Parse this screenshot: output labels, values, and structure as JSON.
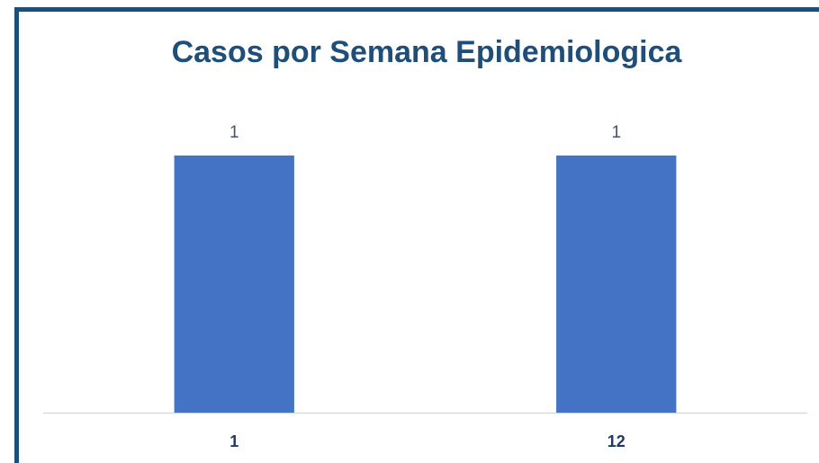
{
  "chart_data": {
    "type": "bar",
    "title": "Casos por Semana Epidemiologica",
    "categories": [
      "1",
      "12"
    ],
    "values": [
      1,
      1
    ],
    "color": "#4472c4",
    "ylim": [
      0,
      1.2
    ]
  }
}
